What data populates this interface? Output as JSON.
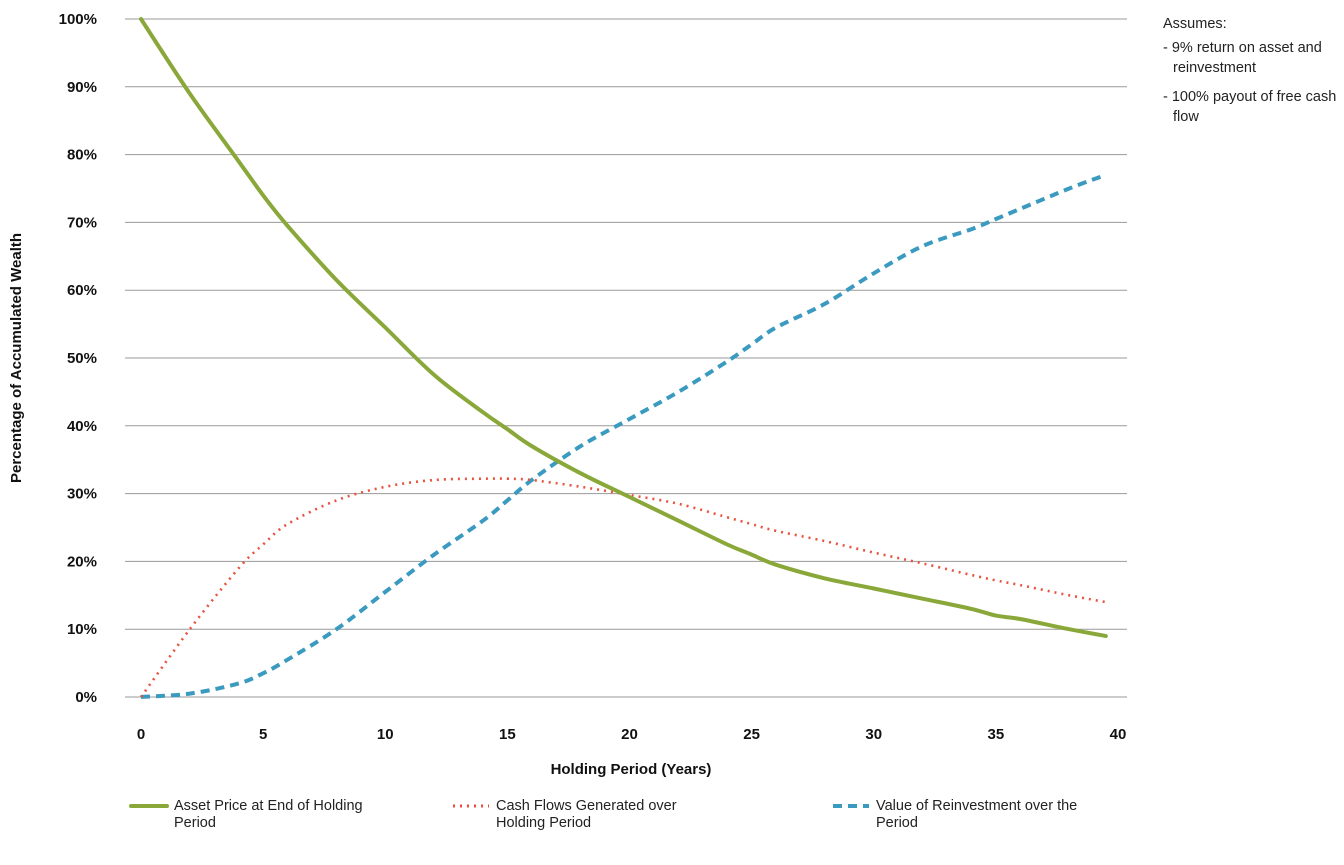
{
  "notes": {
    "title": "Assumes:",
    "items": [
      "- 9% return on asset and reinvestment",
      "- 100% payout of free cash flow"
    ]
  },
  "legend": [
    {
      "label": "Asset Price at End of Holding Period"
    },
    {
      "label": "Cash Flows Generated over Holding Period"
    },
    {
      "label": "Value of Reinvestment over the Period"
    }
  ],
  "chart_data": {
    "type": "line",
    "title": "",
    "xlabel": "Holding Period (Years)",
    "ylabel": "Percentage of Accumulated Wealth",
    "xlim": [
      0,
      40
    ],
    "ylim": [
      0,
      1
    ],
    "xticks": [
      0,
      5,
      10,
      15,
      20,
      25,
      30,
      35,
      40
    ],
    "xtick_labels": [
      "0",
      "5",
      "10",
      "15",
      "20",
      "25",
      "30",
      "35",
      "40"
    ],
    "yticks": [
      0,
      0.1,
      0.2,
      0.3,
      0.4,
      0.5,
      0.6,
      0.7,
      0.8,
      0.9,
      1.0
    ],
    "ytick_labels": [
      "0%",
      "10%",
      "20%",
      "30%",
      "40%",
      "50%",
      "60%",
      "70%",
      "80%",
      "90%",
      "100%"
    ],
    "grid": "horizontal",
    "legend_position": "bottom",
    "x": [
      0,
      2,
      4,
      5,
      6,
      8,
      10,
      12,
      14,
      15,
      16,
      18,
      20,
      22,
      24,
      25,
      26,
      28,
      30,
      32,
      34,
      35,
      36,
      38,
      39.5
    ],
    "series": [
      {
        "name": "Asset Price at End of Holding Period",
        "color": "#8aa83a",
        "style": "solid",
        "values": [
          1.0,
          0.89,
          0.79,
          0.74,
          0.695,
          0.615,
          0.545,
          0.475,
          0.42,
          0.395,
          0.37,
          0.33,
          0.295,
          0.26,
          0.225,
          0.21,
          0.195,
          0.175,
          0.16,
          0.145,
          0.13,
          0.12,
          0.115,
          0.1,
          0.09
        ]
      },
      {
        "name": "Cash Flows Generated over Holding Period",
        "color": "#e8523f",
        "style": "dotted",
        "values": [
          0.0,
          0.1,
          0.19,
          0.225,
          0.255,
          0.29,
          0.31,
          0.32,
          0.322,
          0.322,
          0.32,
          0.31,
          0.298,
          0.285,
          0.265,
          0.255,
          0.245,
          0.23,
          0.213,
          0.197,
          0.18,
          0.172,
          0.165,
          0.15,
          0.14
        ]
      },
      {
        "name": "Value of Reinvestment over the Period",
        "color": "#3a9abf",
        "style": "dashed",
        "values": [
          0.0,
          0.005,
          0.02,
          0.035,
          0.055,
          0.1,
          0.155,
          0.21,
          0.26,
          0.29,
          0.32,
          0.37,
          0.41,
          0.45,
          0.495,
          0.52,
          0.545,
          0.58,
          0.625,
          0.665,
          0.69,
          0.705,
          0.72,
          0.75,
          0.77
        ]
      }
    ]
  }
}
